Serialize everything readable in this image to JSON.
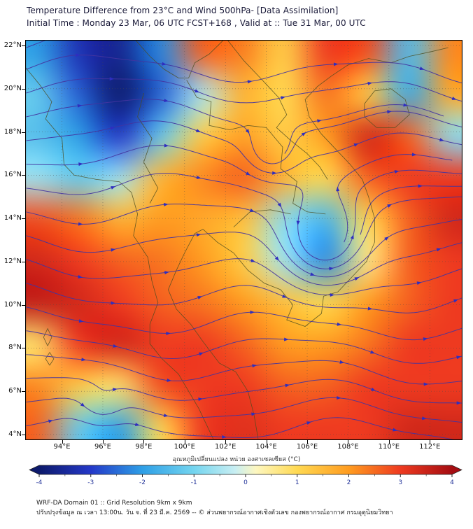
{
  "colors": {
    "background": "#ffffff",
    "frame": "#000000",
    "grid_line": "#4a4a4a",
    "coast": "#4c4c20",
    "title_text": "#191938",
    "tick_text": "#111111",
    "colorbar_tick_text": "#223399",
    "footer_text": "#222222"
  },
  "footer": {
    "line1": "WRF-DA Domain 01 :: Grid Resolution 9km x 9km",
    "line2": "ปรับปรุงข้อมูล ณ เวลา 13:00น. วัน จ. ที่ 23 มี.ค. 2569 -- © ส่วนพยากรณ์อากาศเชิงตัวเลข กองพยากรณ์อากาศ กรมอุตุนิยมวิทยา"
  },
  "chart_data": {
    "type": "heatmap",
    "title": "Temperature Difference from 23°C and Wind 500hPa- [Data Assimilation]",
    "subtitle": "Initial Time : Monday 23 Mar, 06 UTC FCST+168 , Valid at ::  Tue 31 Mar, 00 UTC",
    "units": "°C",
    "x_range": [
      92.2,
      113.6
    ],
    "y_range": [
      3.74,
      22.26
    ],
    "x_ticks": [
      {
        "value": 94,
        "label": "94°E"
      },
      {
        "value": 96,
        "label": "96°E"
      },
      {
        "value": 98,
        "label": "98°E"
      },
      {
        "value": 100,
        "label": "100°E"
      },
      {
        "value": 102,
        "label": "102°E"
      },
      {
        "value": 104,
        "label": "104°E"
      },
      {
        "value": 106,
        "label": "106°E"
      },
      {
        "value": 108,
        "label": "108°E"
      },
      {
        "value": 110,
        "label": "110°E"
      },
      {
        "value": 112,
        "label": "112°E"
      }
    ],
    "y_ticks": [
      {
        "value": 4,
        "label": "4°N"
      },
      {
        "value": 6,
        "label": "6°N"
      },
      {
        "value": 8,
        "label": "8°N"
      },
      {
        "value": 10,
        "label": "10°N"
      },
      {
        "value": 12,
        "label": "12°N"
      },
      {
        "value": 14,
        "label": "14°N"
      },
      {
        "value": 16,
        "label": "16°N"
      },
      {
        "value": 18,
        "label": "18°N"
      },
      {
        "value": 20,
        "label": "20°N"
      },
      {
        "value": 22,
        "label": "22°N"
      }
    ],
    "grid": {
      "lons": [
        92,
        94,
        96,
        98,
        100,
        102,
        104,
        106,
        108,
        110,
        112
      ],
      "lats": [
        22,
        20,
        18,
        16,
        14,
        12,
        10,
        8,
        6,
        4
      ],
      "values_degC": [
        [
          -2.0,
          -3.2,
          -3.6,
          -2.2,
          2.6,
          2.3,
          1.2,
          3.0,
          2.8,
          -1.5,
          2.2
        ],
        [
          -1.2,
          -2.6,
          -4.0,
          -2.6,
          -0.5,
          1.6,
          1.0,
          2.4,
          1.2,
          -1.8,
          1.8
        ],
        [
          -1.4,
          -2.0,
          -3.0,
          -1.2,
          1.2,
          1.9,
          1.2,
          2.0,
          3.4,
          2.6,
          -0.8
        ],
        [
          -0.6,
          -1.2,
          -0.6,
          1.6,
          2.2,
          2.6,
          1.6,
          1.0,
          2.6,
          3.0,
          3.0
        ],
        [
          2.8,
          2.4,
          1.6,
          2.0,
          1.8,
          1.4,
          -0.8,
          -1.6,
          1.0,
          2.6,
          3.4
        ],
        [
          3.4,
          3.0,
          2.6,
          2.4,
          2.0,
          1.2,
          -0.6,
          -2.2,
          0.6,
          2.6,
          3.0
        ],
        [
          3.6,
          3.4,
          3.0,
          2.6,
          2.4,
          2.0,
          1.4,
          1.0,
          2.0,
          2.6,
          3.0
        ],
        [
          0.8,
          3.0,
          3.4,
          3.0,
          3.0,
          2.6,
          2.0,
          2.0,
          2.4,
          3.0,
          3.0
        ],
        [
          2.2,
          1.2,
          0.8,
          2.8,
          3.0,
          3.0,
          2.6,
          2.6,
          3.0,
          3.0,
          3.0
        ],
        [
          2.6,
          -1.2,
          -2.0,
          1.0,
          3.0,
          3.2,
          3.0,
          3.0,
          3.0,
          3.4,
          3.4
        ]
      ]
    },
    "colorbar": {
      "label": "อุณหภูมิเปลี่ยนแปลง หน่วย องศาเซลเซียส (°C)",
      "range": [
        -4,
        4
      ],
      "major_ticks": [
        "-4",
        "-3",
        "-2",
        "-1",
        "0",
        "1",
        "2",
        "3",
        "4"
      ],
      "minor_tick_step": 0.5,
      "stops": [
        {
          "v": -4.0,
          "c": "#0d1a6b"
        },
        {
          "v": -3.0,
          "c": "#2438c8"
        },
        {
          "v": -2.0,
          "c": "#2e9fe6"
        },
        {
          "v": -1.0,
          "c": "#74d5ef"
        },
        {
          "v": -0.2,
          "c": "#c8eef2"
        },
        {
          "v": 0.2,
          "c": "#fdf7c0"
        },
        {
          "v": 1.0,
          "c": "#ffd952"
        },
        {
          "v": 2.0,
          "c": "#ff9c20"
        },
        {
          "v": 3.0,
          "c": "#ee3a20"
        },
        {
          "v": 4.0,
          "c": "#a50d12"
        }
      ]
    },
    "wind": {
      "level": "500hPa",
      "flow": "predominantly westerly streamlines with embedded waves and closed circulations",
      "stream_color": "#4334a0",
      "arrow_color": "#2e2ec0",
      "wave": {
        "amp1": 0.25,
        "k1": 0.5,
        "amp2": 0.12,
        "k2": 1.1
      },
      "vortices": [
        {
          "lon": 104.2,
          "lat": 17.0,
          "radius": 1.2,
          "strength": 2.8
        },
        {
          "lon": 106.8,
          "lat": 12.9,
          "radius": 1.9,
          "strength": 2.4
        },
        {
          "lon": 95.9,
          "lat": 5.2,
          "radius": 1.1,
          "strength": 1.5
        }
      ],
      "seed_lats": [
        4.4,
        5.5,
        6.6,
        7.7,
        8.8,
        9.9,
        11.0,
        12.1,
        13.2,
        14.3,
        15.4,
        16.5,
        17.6,
        18.7,
        19.8,
        20.9,
        21.9
      ],
      "loop_seeds": [
        [
          107.8,
          12.9
        ],
        [
          108.6,
          13.25
        ],
        [
          104.9,
          17.0
        ]
      ]
    }
  }
}
